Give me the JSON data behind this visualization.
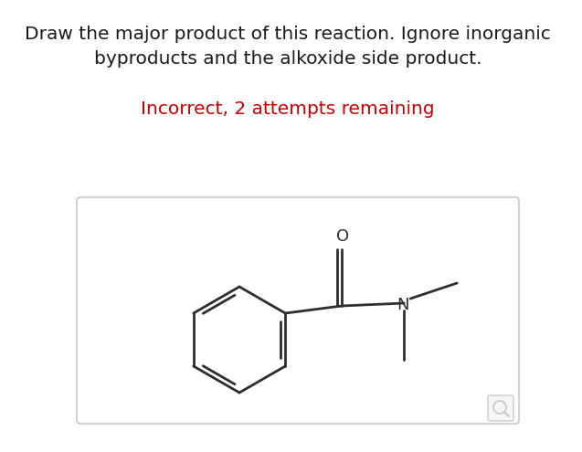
{
  "title_line1": "Draw the major product of this reaction. Ignore inorganic",
  "title_line2": "byproducts and the alkoxide side product.",
  "status_text": "Incorrect, 2 attempts remaining",
  "status_color": "#cc0000",
  "title_color": "#1a1a1a",
  "title_fontsize": 14.5,
  "status_fontsize": 14.5,
  "bg_color": "#ffffff",
  "box_bg": "#ffffff",
  "box_edge": "#c8c8c8",
  "molecule_color": "#2d2d2d",
  "line_width": 2.0
}
